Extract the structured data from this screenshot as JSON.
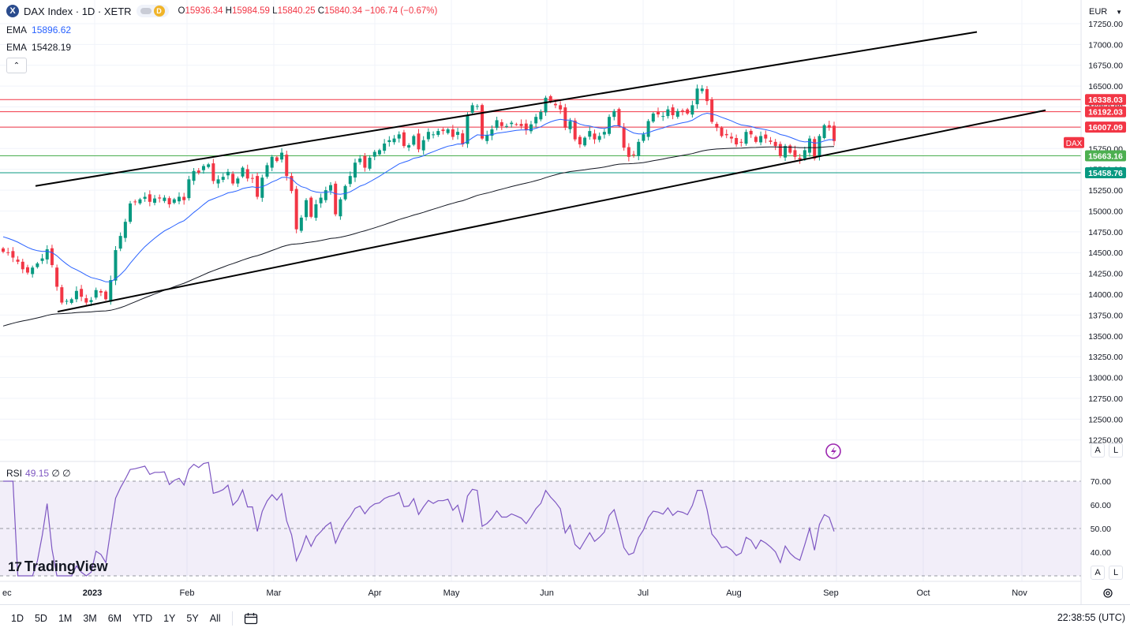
{
  "header": {
    "symbol_logo": "X",
    "title": "DAX Index · 1D · XETR",
    "badge_d": "D",
    "ohlc": {
      "o_label": "O",
      "o": "15936.34",
      "h_label": "H",
      "h": "15984.59",
      "l_label": "L",
      "l": "15840.25",
      "c_label": "C",
      "c": "15840.34",
      "change": "−106.74 (−0.67%)"
    }
  },
  "ema": [
    {
      "label": "EMA",
      "value": "15896.62",
      "color": "#2962ff"
    },
    {
      "label": "EMA",
      "value": "15428.19",
      "color": "#131722"
    }
  ],
  "collapse_icon": "chevron-up-icon",
  "currency": "EUR",
  "price_scale": {
    "ticks": [
      "17250.00",
      "17000.00",
      "16750.00",
      "16500.00",
      "16250.00",
      "16000.00",
      "15750.00",
      "15500.00",
      "15250.00",
      "15000.00",
      "14750.00",
      "14500.00",
      "14250.00",
      "14000.00",
      "13750.00",
      "13500.00",
      "13250.00",
      "13000.00",
      "12750.00",
      "12500.00",
      "12250.00"
    ],
    "levels": [
      {
        "label": "16338.03",
        "value": 16338.03,
        "color": "#f23645"
      },
      {
        "label": "16192.03",
        "value": 16192.03,
        "color": "#f23645"
      },
      {
        "label": "16007.09",
        "value": 16007.09,
        "color": "#f23645"
      },
      {
        "label": "15663.16",
        "value": 15663.16,
        "color": "#4caf50"
      },
      {
        "label": "15458.76",
        "value": 15458.76,
        "color": "#089981"
      }
    ],
    "symbol_tag": "DAX",
    "symbol_tag_color": "#f23645"
  },
  "time_axis": [
    "ec",
    "2023",
    "Feb",
    "Mar",
    "Apr",
    "May",
    "Jun",
    "Jul",
    "Aug",
    "Sep",
    "Oct",
    "Nov"
  ],
  "rsi": {
    "label": "RSI",
    "value": "49.15",
    "extra": "∅ ∅",
    "ticks": [
      "70.00",
      "60.00",
      "50.00",
      "40.00"
    ],
    "color": "#7e57c2"
  },
  "buttons": {
    "auto": "A",
    "log": "L"
  },
  "branding": {
    "logo_mark": "17",
    "name": "TradingView"
  },
  "range_buttons": [
    "1D",
    "5D",
    "1M",
    "3M",
    "6M",
    "YTD",
    "1Y",
    "5Y",
    "All"
  ],
  "clock": "22:38:55 (UTC)",
  "chart_data": {
    "type": "candlestick",
    "title": "DAX Index · 1D · XETR",
    "currency": "EUR",
    "ylim": [
      12250,
      17300
    ],
    "x_axis_start": "Dec 2022",
    "candles_close": [
      14510,
      14500,
      14440,
      14390,
      14300,
      14260,
      14320,
      14370,
      14430,
      14540,
      14350,
      14090,
      13900,
      13920,
      13940,
      14040,
      13970,
      13900,
      13930,
      14050,
      14020,
      13940,
      14170,
      14530,
      14700,
      14870,
      15090,
      15110,
      15140,
      15170,
      15110,
      15150,
      15150,
      15160,
      15080,
      15140,
      15170,
      15130,
      15380,
      15480,
      15460,
      15540,
      15560,
      15360,
      15380,
      15410,
      15470,
      15330,
      15390,
      15520,
      15390,
      15390,
      15170,
      15400,
      15550,
      15650,
      15600,
      15700,
      15420,
      15240,
      14780,
      14920,
      15130,
      14930,
      15080,
      15160,
      15250,
      15310,
      14960,
      15140,
      15300,
      15420,
      15580,
      15630,
      15520,
      15640,
      15710,
      15730,
      15810,
      15850,
      15870,
      15920,
      15780,
      15790,
      15900,
      15740,
      15850,
      15950,
      15920,
      15960,
      15960,
      15980,
      15890,
      15950,
      15800,
      16150,
      16270,
      16260,
      15870,
      15910,
      15980,
      16090,
      16020,
      16020,
      16060,
      16040,
      16020,
      15970,
      16040,
      16130,
      16190,
      16360,
      16310,
      16270,
      16220,
      16000,
      16080,
      15860,
      15800,
      15880,
      15960,
      15860,
      15900,
      15950,
      16130,
      16200,
      16020,
      15760,
      15650,
      15670,
      15830,
      15920,
      16080,
      16170,
      16160,
      16140,
      16220,
      16150,
      16200,
      16190,
      16170,
      16270,
      16470,
      16470,
      16320,
      16070,
      16000,
      15900,
      15910,
      15870,
      15800,
      15820,
      15950,
      15920,
      15830,
      15900,
      15870,
      15830,
      15780,
      15660,
      15780,
      15700,
      15650,
      15620,
      15730,
      15870,
      15630,
      15900,
      16030,
      16000,
      15840
    ],
    "ema_fast": {
      "value": 15896.62,
      "color": "#2962ff"
    },
    "ema_slow": {
      "value": 15428.19,
      "color": "#131722"
    },
    "horizontal_levels": [
      16338.03,
      16192.03,
      16007.09,
      15663.16,
      15458.76
    ],
    "channel": {
      "upper": [
        {
          "date": "Dec 2022",
          "price": 15300
        },
        {
          "date": "Oct 2023",
          "price": 17150
        }
      ],
      "lower": [
        {
          "date": "Jan 2023",
          "price": 13790
        },
        {
          "date": "Nov 2023",
          "price": 16210
        }
      ]
    },
    "rsi": {
      "ylim": [
        30,
        75
      ],
      "levels": [
        70,
        50,
        30
      ],
      "last": 49.15
    }
  }
}
